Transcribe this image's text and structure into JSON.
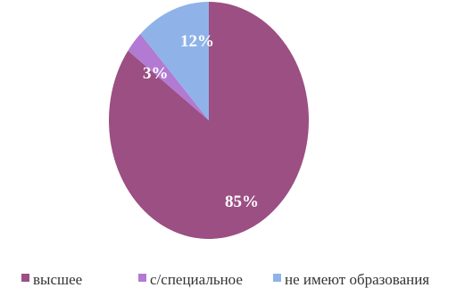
{
  "chart_data": {
    "type": "pie",
    "categories": [
      "высшее",
      "с/специальное",
      "не имеют образования"
    ],
    "values": [
      85,
      3,
      12
    ],
    "labels": [
      "85%",
      "3%",
      "12%"
    ],
    "colors": [
      "#9b4f83",
      "#b27ad2",
      "#8fb3e8"
    ],
    "legend_position": "bottom"
  }
}
